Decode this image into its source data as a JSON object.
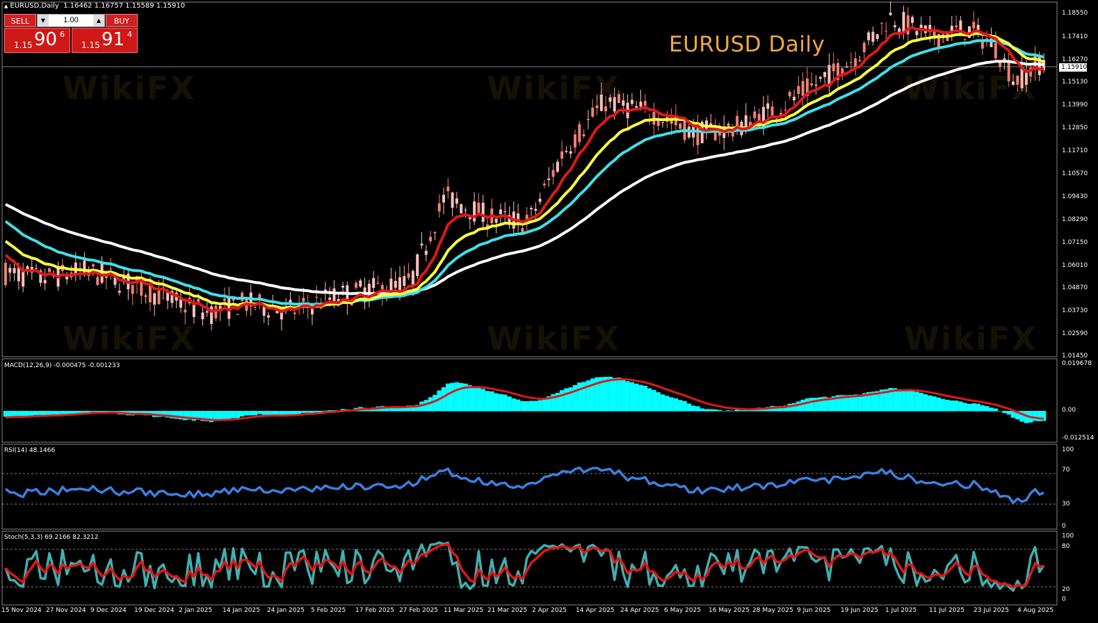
{
  "header": {
    "symbol": "EURUSD,Daily",
    "ohlc": "1.16462 1.16757 1.15589 1.15910",
    "overlay_title": "EURUSD Daily"
  },
  "trade_panel": {
    "sell_label": "SELL",
    "buy_label": "BUY",
    "lot_value": "1.00",
    "sell_prefix": "1.15",
    "sell_big": "90",
    "sell_sup": "6",
    "buy_prefix": "1.15",
    "buy_big": "91",
    "buy_sup": "4"
  },
  "watermark": "WikiFX",
  "panes": {
    "macd_label": "MACD(12,26,9) -0.000475 -0.001233",
    "rsi_label": "RSI(14) 48.1466",
    "stoch_label": "Stoch(5,3,3) 69.2166 82.3212"
  },
  "price_axis": [
    "1.18550",
    "1.17410",
    "1.16270",
    "1.15130",
    "1.13990",
    "1.12850",
    "1.11710",
    "1.10570",
    "1.09430",
    "1.08290",
    "1.07150",
    "1.06010",
    "1.04870",
    "1.03730",
    "1.02590",
    "1.01450"
  ],
  "current_price": "1.15910",
  "macd_axis": [
    "0.019678",
    "0.00",
    "-0.012514"
  ],
  "rsi_axis": [
    "100",
    "70",
    "30",
    "0"
  ],
  "stoch_axis": [
    "100",
    "80",
    "20",
    "0"
  ],
  "date_axis": [
    "15 Nov 2024",
    "27 Nov 2024",
    "9 Dec 2024",
    "19 Dec 2024",
    "2 Jan 2025",
    "14 Jan 2025",
    "24 Jan 2025",
    "5 Feb 2025",
    "17 Feb 2025",
    "27 Feb 2025",
    "11 Mar 2025",
    "21 Mar 2025",
    "2 Apr 2025",
    "14 Apr 2025",
    "24 Apr 2025",
    "6 May 2025",
    "16 May 2025",
    "28 May 2025",
    "9 Jun 2025",
    "19 Jun 2025",
    "1 Jul 2025",
    "11 Jul 2025",
    "23 Jul 2025",
    "4 Aug 2025"
  ],
  "colors": {
    "bull": "#f08070",
    "bear": "#ffc0c0",
    "ema_fast": "#e01818",
    "ema_mid": "#ffff40",
    "ema_slow": "#40e0e8",
    "ema_long": "#ffffff",
    "macd_hist": "#00ffff",
    "macd_signal": "#e01818",
    "rsi": "#3c80e0",
    "stoch_main": "#40b0b0",
    "stoch_signal": "#e01818"
  },
  "chart_data": {
    "type": "line",
    "title": "EURUSD Daily",
    "x_range": [
      "15 Nov 2024",
      "8 Aug 2025"
    ],
    "ylim": [
      1.0145,
      1.1855
    ],
    "series": [
      {
        "name": "EURUSD",
        "x": [
          "15 Nov 2024",
          "27 Nov 2024",
          "9 Dec 2024",
          "19 Dec 2024",
          "2 Jan 2025",
          "14 Jan 2025",
          "24 Jan 2025",
          "5 Feb 2025",
          "17 Feb 2025",
          "27 Feb 2025",
          "11 Mar 2025",
          "21 Mar 2025",
          "2 Apr 2025",
          "14 Apr 2025",
          "24 Apr 2025",
          "6 May 2025",
          "16 May 2025",
          "28 May 2025",
          "9 Jun 2025",
          "19 Jun 2025",
          "1 Jul 2025",
          "11 Jul 2025",
          "23 Jul 2025",
          "4 Aug 2025"
        ],
        "values": [
          1.054,
          1.056,
          1.052,
          1.04,
          1.032,
          1.028,
          1.042,
          1.035,
          1.048,
          1.044,
          1.088,
          1.082,
          1.095,
          1.138,
          1.136,
          1.122,
          1.118,
          1.134,
          1.148,
          1.156,
          1.18,
          1.17,
          1.172,
          1.1591
        ]
      }
    ]
  }
}
